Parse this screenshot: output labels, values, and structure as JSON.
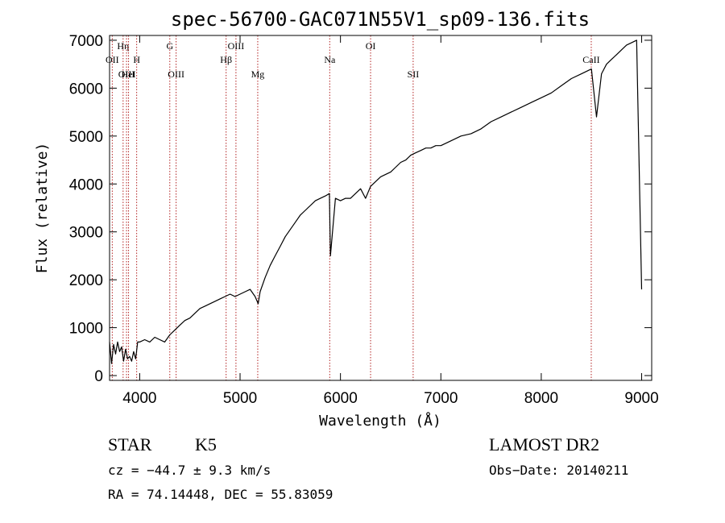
{
  "chart_data": {
    "type": "line",
    "title": "spec-56700-GAC071N55V1_sp09-136.fits",
    "xlabel": "Wavelength (Å)",
    "ylabel": "Flux (relative)",
    "xlim": [
      3700,
      9100
    ],
    "ylim": [
      -100,
      7100
    ],
    "x_ticks": [
      4000,
      5000,
      6000,
      7000,
      8000,
      9000
    ],
    "x_tick_labels": [
      "4000",
      "5000",
      "6000",
      "7000",
      "8000",
      "9000"
    ],
    "y_ticks": [
      0,
      1000,
      2000,
      3000,
      4000,
      5000,
      6000,
      7000
    ],
    "y_tick_labels": [
      "0",
      "1000",
      "2000",
      "3000",
      "4000",
      "5000",
      "6000",
      "7000"
    ],
    "series": [
      {
        "x": [
          3700,
          3720,
          3740,
          3760,
          3780,
          3800,
          3820,
          3840,
          3860,
          3880,
          3900,
          3920,
          3940,
          3960,
          3980,
          4000,
          4050,
          4100,
          4150,
          4200,
          4250,
          4300,
          4350,
          4400,
          4450,
          4500,
          4550,
          4600,
          4650,
          4700,
          4750,
          4800,
          4850,
          4900,
          4950,
          5000,
          5050,
          5100,
          5150,
          5180,
          5200,
          5250,
          5300,
          5350,
          5400,
          5450,
          5500,
          5550,
          5600,
          5650,
          5700,
          5750,
          5800,
          5850,
          5890,
          5900,
          5950,
          6000,
          6050,
          6100,
          6150,
          6200,
          6250,
          6300,
          6350,
          6400,
          6450,
          6500,
          6550,
          6600,
          6650,
          6700,
          6750,
          6800,
          6850,
          6900,
          6950,
          7000,
          7100,
          7200,
          7300,
          7400,
          7500,
          7600,
          7700,
          7800,
          7900,
          8000,
          8100,
          8200,
          8300,
          8400,
          8450,
          8500,
          8550,
          8600,
          8650,
          8700,
          8750,
          8800,
          8850,
          8900,
          8950,
          9000
        ],
        "y": [
          700,
          250,
          650,
          450,
          700,
          500,
          600,
          300,
          550,
          350,
          400,
          300,
          500,
          350,
          700,
          700,
          750,
          700,
          800,
          750,
          700,
          850,
          950,
          1050,
          1150,
          1200,
          1300,
          1400,
          1450,
          1500,
          1550,
          1600,
          1650,
          1700,
          1650,
          1700,
          1750,
          1800,
          1650,
          1500,
          1750,
          2050,
          2300,
          2500,
          2700,
          2900,
          3050,
          3200,
          3350,
          3450,
          3550,
          3650,
          3700,
          3750,
          3800,
          2500,
          3700,
          3650,
          3700,
          3700,
          3800,
          3900,
          3700,
          3950,
          4050,
          4150,
          4200,
          4250,
          4350,
          4450,
          4500,
          4600,
          4650,
          4700,
          4750,
          4750,
          4800,
          4800,
          4900,
          5000,
          5050,
          5150,
          5300,
          5400,
          5500,
          5600,
          5700,
          5800,
          5900,
          6050,
          6200,
          6300,
          6350,
          6400,
          5400,
          6300,
          6500,
          6600,
          6700,
          6800,
          6900,
          6950,
          7000,
          1800
        ]
      }
    ],
    "line_markers": [
      {
        "wavelength": 3727,
        "label": "OII",
        "row": 2
      },
      {
        "wavelength": 3835,
        "label": "Hη",
        "row": 1
      },
      {
        "wavelength": 3869,
        "label": "OIII",
        "row": 3
      },
      {
        "wavelength": 3889,
        "label": "HeI",
        "row": 3
      },
      {
        "wavelength": 3970,
        "label": "H",
        "row": 2
      },
      {
        "wavelength": 4300,
        "label": "G",
        "row": 1
      },
      {
        "wavelength": 4363,
        "label": "OIII",
        "row": 3
      },
      {
        "wavelength": 4861,
        "label": "Hβ",
        "row": 2
      },
      {
        "wavelength": 4959,
        "label": "OIII",
        "row": 1
      },
      {
        "wavelength": 5176,
        "label": "Mg",
        "row": 3
      },
      {
        "wavelength": 5893,
        "label": "Na",
        "row": 2
      },
      {
        "wavelength": 6300,
        "label": "OI",
        "row": 1
      },
      {
        "wavelength": 6724,
        "label": "SII",
        "row": 3
      },
      {
        "wavelength": 8498,
        "label": "CaII",
        "row": 2
      }
    ]
  },
  "info": {
    "class_label": "STAR",
    "subclass": "K5",
    "survey": "LAMOST DR2",
    "redshift_line": "cz = −44.7 ± 9.3 km/s",
    "obs_date": "Obs−Date: 20140211",
    "coords_line": "RA =  74.14448, DEC =  55.83059"
  },
  "colors": {
    "frame": "#000000",
    "spectrum": "#000000",
    "marker_line": "#b22222"
  }
}
